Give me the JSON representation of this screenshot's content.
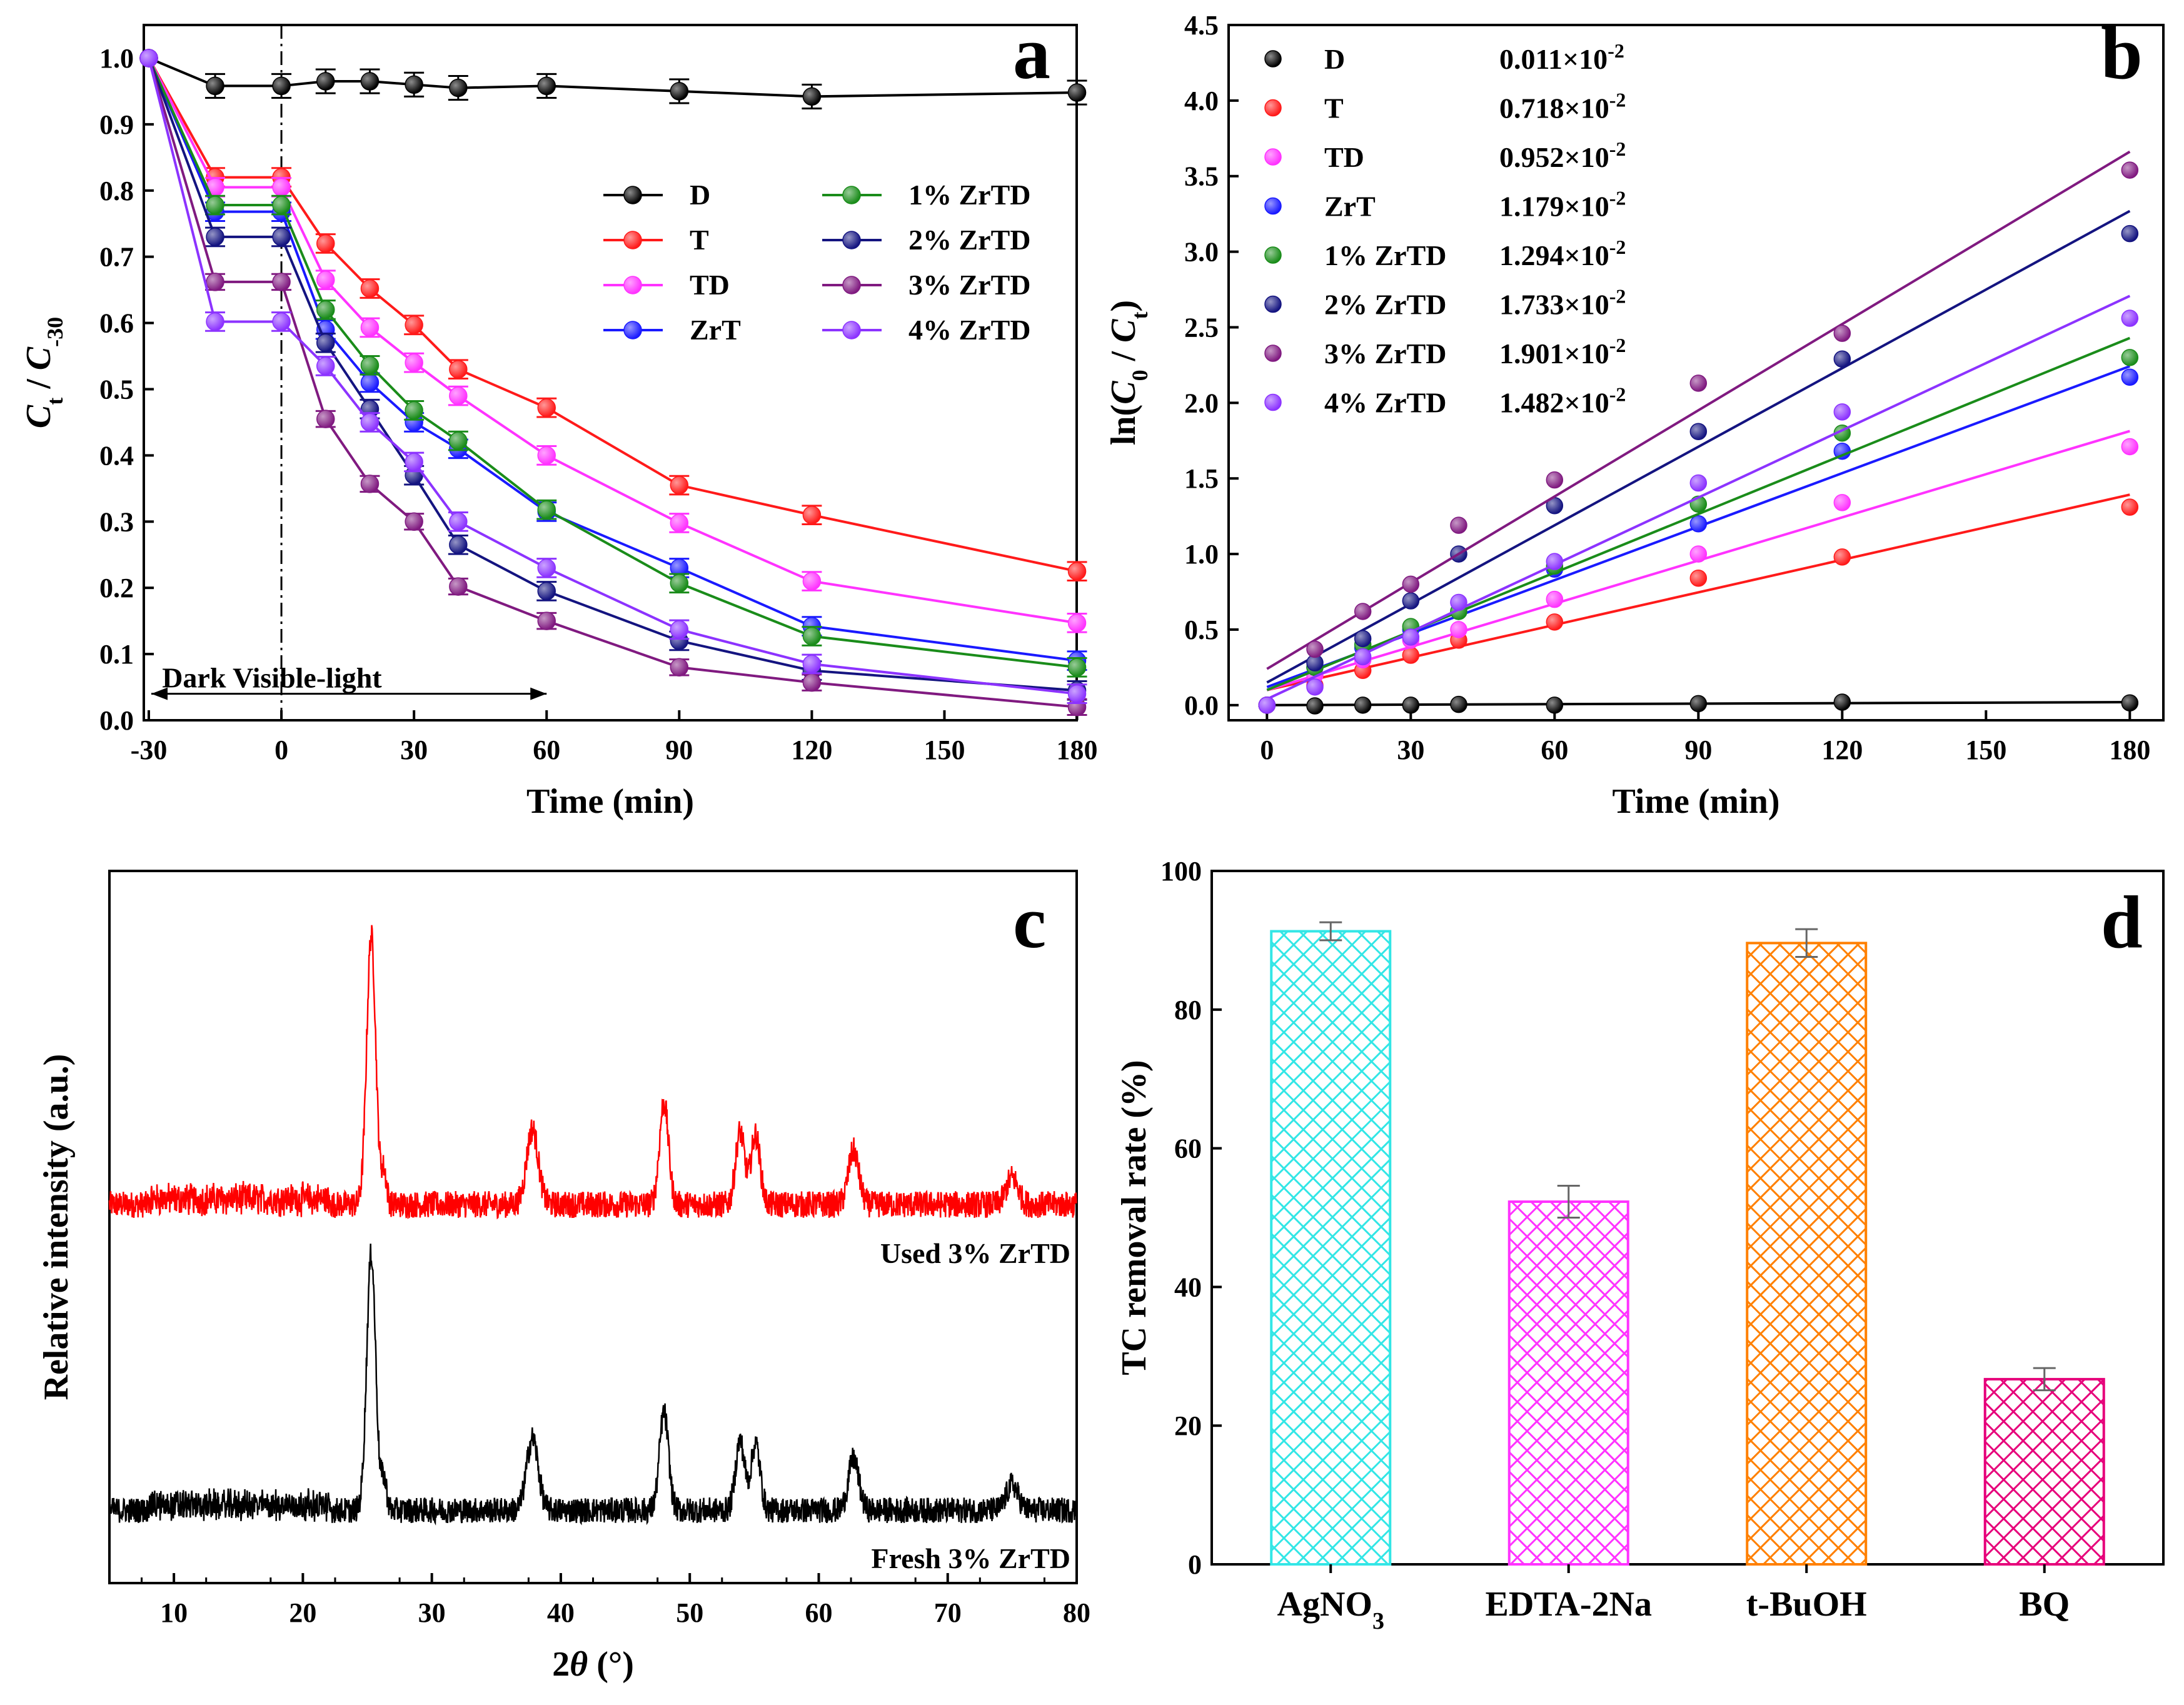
{
  "chart_data": [
    {
      "panel": "a",
      "type": "line",
      "xlabel": "Time (min)",
      "ylabel": {
        "main": "C",
        "sub": "t",
        "sep": " / ",
        "main2": "C",
        "sub2": "-30"
      },
      "xticks": [
        -30,
        0,
        30,
        60,
        90,
        120,
        150,
        180
      ],
      "yticks": [
        0.0,
        0.1,
        0.2,
        0.3,
        0.4,
        0.5,
        0.6,
        0.7,
        0.8,
        0.9,
        1.0
      ],
      "xlim": [
        -30,
        180
      ],
      "ylim": [
        0,
        1.05
      ],
      "annotation": "Dark Visible-light",
      "x": [
        -30,
        -15,
        0,
        10,
        20,
        30,
        40,
        60,
        90,
        120,
        180
      ],
      "series": [
        {
          "name": "D",
          "color": "#000000",
          "values": [
            1.0,
            0.958,
            0.958,
            0.965,
            0.965,
            0.96,
            0.955,
            0.958,
            0.95,
            0.942,
            0.948
          ],
          "err": 0.018
        },
        {
          "name": "T",
          "color": "#ff1a1a",
          "values": [
            1.0,
            0.82,
            0.82,
            0.72,
            0.652,
            0.597,
            0.53,
            0.472,
            0.355,
            0.31,
            0.225
          ],
          "err": 0.014
        },
        {
          "name": "TD",
          "color": "#ff33ff",
          "values": [
            1.0,
            0.805,
            0.805,
            0.665,
            0.593,
            0.54,
            0.49,
            0.4,
            0.298,
            0.21,
            0.147
          ],
          "err": 0.014
        },
        {
          "name": "ZrT",
          "color": "#1a1aff",
          "values": [
            1.0,
            0.768,
            0.768,
            0.59,
            0.51,
            0.45,
            0.41,
            0.315,
            0.23,
            0.142,
            0.09
          ],
          "err": 0.014
        },
        {
          "name": "1% ZrTD",
          "color": "#1a8c1a",
          "values": [
            1.0,
            0.778,
            0.778,
            0.62,
            0.536,
            0.468,
            0.422,
            0.318,
            0.207,
            0.127,
            0.08
          ],
          "err": 0.014
        },
        {
          "name": "2% ZrTD",
          "color": "#141480",
          "values": [
            1.0,
            0.73,
            0.73,
            0.57,
            0.47,
            0.37,
            0.265,
            0.195,
            0.12,
            0.075,
            0.045
          ],
          "err": 0.014
        },
        {
          "name": "3% ZrTD",
          "color": "#801a80",
          "values": [
            1.0,
            0.662,
            0.662,
            0.455,
            0.357,
            0.3,
            0.202,
            0.15,
            0.08,
            0.057,
            0.02
          ],
          "err": 0.012
        },
        {
          "name": "4% ZrTD",
          "color": "#8c33ff",
          "values": [
            1.0,
            0.602,
            0.602,
            0.535,
            0.45,
            0.39,
            0.3,
            0.23,
            0.137,
            0.085,
            0.04
          ],
          "err": 0.014
        }
      ]
    },
    {
      "panel": "b",
      "type": "scatter",
      "xlabel": "Time (min)",
      "ylabel": {
        "pre": "ln(",
        "main": "C",
        "sub": "0",
        "sep": " / ",
        "main2": "C",
        "sub2": "t",
        "post": ")"
      },
      "xticks": [
        0,
        30,
        60,
        90,
        120,
        150,
        180
      ],
      "yticks": [
        0.0,
        0.5,
        1.0,
        1.5,
        2.0,
        2.5,
        3.0,
        3.5,
        4.0,
        4.5
      ],
      "xlim": [
        -8,
        187
      ],
      "ylim": [
        -0.1,
        4.5
      ],
      "x": [
        0,
        10,
        20,
        30,
        40,
        60,
        90,
        120,
        180
      ],
      "series": [
        {
          "name": "D",
          "k_mantissa": "0.011",
          "k_exp": "-2",
          "color": "#000000",
          "values": [
            0.0,
            -0.005,
            0.0,
            0.0,
            0.005,
            0.0,
            0.01,
            0.02,
            0.015
          ],
          "fit": [
            0.0,
            0.00011
          ]
        },
        {
          "name": "T",
          "k_mantissa": "0.718",
          "k_exp": "-2",
          "color": "#ff1a1a",
          "values": [
            0.0,
            0.13,
            0.23,
            0.33,
            0.43,
            0.55,
            0.84,
            0.98,
            1.31
          ],
          "fit": [
            0.1,
            0.00718
          ]
        },
        {
          "name": "TD",
          "k_mantissa": "0.952",
          "k_exp": "-2",
          "color": "#ff33ff",
          "values": [
            0.0,
            0.2,
            0.3,
            0.43,
            0.5,
            0.7,
            1.0,
            1.34,
            1.71
          ],
          "fit": [
            0.1,
            0.00952
          ]
        },
        {
          "name": "ZrT",
          "k_mantissa": "1.179",
          "k_exp": "-2",
          "color": "#1a1aff",
          "values": [
            0.0,
            0.25,
            0.38,
            0.5,
            0.62,
            0.9,
            1.2,
            1.68,
            2.17
          ],
          "fit": [
            0.12,
            0.01179
          ]
        },
        {
          "name": "1% ZrTD",
          "k_mantissa": "1.294",
          "k_exp": "-2",
          "color": "#1a8c1a",
          "values": [
            0.0,
            0.25,
            0.4,
            0.52,
            0.62,
            0.92,
            1.33,
            1.8,
            2.3
          ],
          "fit": [
            0.1,
            0.01294
          ]
        },
        {
          "name": "2% ZrTD",
          "k_mantissa": "1.733",
          "k_exp": "-2",
          "color": "#141480",
          "values": [
            0.0,
            0.28,
            0.44,
            0.69,
            1.0,
            1.32,
            1.81,
            2.29,
            3.12
          ],
          "fit": [
            0.15,
            0.01733
          ]
        },
        {
          "name": "3% ZrTD",
          "k_mantissa": "1.901",
          "k_exp": "-2",
          "color": "#801a80",
          "values": [
            0.0,
            0.37,
            0.62,
            0.8,
            1.19,
            1.49,
            2.13,
            2.46,
            3.54
          ],
          "fit": [
            0.24,
            0.01901
          ]
        },
        {
          "name": "4% ZrTD",
          "k_mantissa": "1.482",
          "k_exp": "-2",
          "color": "#8c33ff",
          "values": [
            0.0,
            0.12,
            0.32,
            0.45,
            0.68,
            0.95,
            1.47,
            1.94,
            2.56
          ],
          "fit": [
            0.04,
            0.01482
          ]
        }
      ]
    },
    {
      "panel": "c",
      "type": "line",
      "xlabel": {
        "main": "2",
        "italic": "θ",
        "post": " (°)"
      },
      "ylabel": "Relative intensity (a.u.)",
      "xticks": [
        10,
        20,
        30,
        40,
        50,
        60,
        70,
        80
      ],
      "xlim": [
        5,
        80
      ],
      "peaks": [
        {
          "pos": 25.3,
          "height": 1.0,
          "width": 0.35
        },
        {
          "pos": 26.3,
          "height": 0.12,
          "width": 0.2
        },
        {
          "pos": 37.8,
          "height": 0.28,
          "width": 0.45
        },
        {
          "pos": 48.0,
          "height": 0.38,
          "width": 0.35
        },
        {
          "pos": 53.9,
          "height": 0.27,
          "width": 0.35
        },
        {
          "pos": 55.1,
          "height": 0.26,
          "width": 0.35
        },
        {
          "pos": 62.7,
          "height": 0.2,
          "width": 0.4
        },
        {
          "pos": 75.0,
          "height": 0.1,
          "width": 0.45
        }
      ],
      "series": [
        {
          "name": "Used 3% ZrTD",
          "color": "#ff0000"
        },
        {
          "name": "Fresh 3% ZrTD",
          "color": "#000000"
        }
      ]
    },
    {
      "panel": "d",
      "type": "bar",
      "xlabel": "",
      "ylabel": "TC removal rate (%)",
      "yticks": [
        0,
        20,
        40,
        60,
        80,
        100
      ],
      "ylim": [
        0,
        100
      ],
      "categories": [
        {
          "main": "AgNO",
          "sub": "3"
        },
        {
          "main": "EDTA-2Na",
          "sub": ""
        },
        {
          "main": "t-BuOH",
          "sub": ""
        },
        {
          "main": "BQ",
          "sub": ""
        }
      ],
      "values": [
        91.3,
        52.3,
        89.6,
        26.7
      ],
      "errors": [
        1.3,
        2.3,
        2.0,
        1.6
      ],
      "colors": [
        "#33e6e6",
        "#ff33ff",
        "#ff8000",
        "#e6007a"
      ]
    }
  ],
  "panel_letters": [
    "a",
    "b",
    "c",
    "d"
  ]
}
